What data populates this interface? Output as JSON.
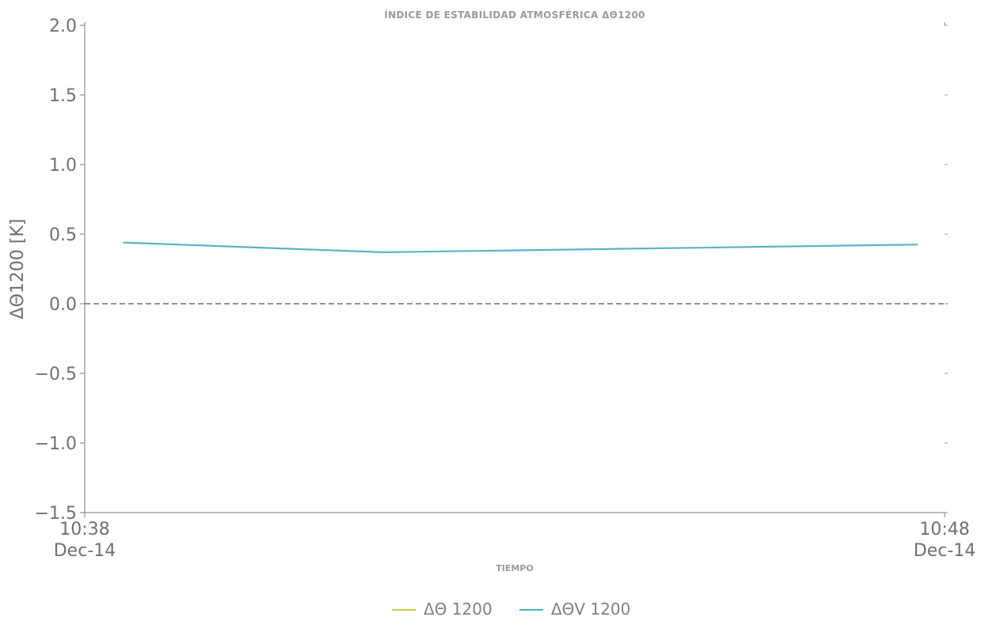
{
  "chart_data": {
    "type": "line",
    "title": "ÍNDICE DE ESTABILIDAD ATMOSFÉRICA ΔΘ1200",
    "xlabel": "TIEMPO",
    "ylabel": "ΔΘ1200 [K]",
    "ylim": [
      -1.5,
      2.0
    ],
    "xlim": [
      "10:38",
      "10:48"
    ],
    "y_ticks": [
      {
        "value": 2.0,
        "label": "2.0"
      },
      {
        "value": 1.5,
        "label": "1.5"
      },
      {
        "value": 1.0,
        "label": "1.0"
      },
      {
        "value": 0.5,
        "label": "0.5"
      },
      {
        "value": 0.0,
        "label": "0.0"
      },
      {
        "value": -0.5,
        "label": "−0.5"
      },
      {
        "value": -1.0,
        "label": "−1.0"
      },
      {
        "value": -1.5,
        "label": "−1.5"
      }
    ],
    "x_ticks": [
      {
        "time": "10:38",
        "line1": "10:38",
        "line2": "Dec-14"
      },
      {
        "time": "10:48",
        "line1": "10:48",
        "line2": "Dec-14"
      }
    ],
    "reference_line": {
      "y": 0.0,
      "style": "dashed",
      "color": "#6e6e6e"
    },
    "grid": false,
    "legend_position": "bottom-center",
    "series": [
      {
        "name": "ΔΘ 1200",
        "color": "#c9cf5a",
        "x": [],
        "y": []
      },
      {
        "name": "ΔΘV 1200",
        "color": "#57b5c6",
        "x": [
          "10:38:27",
          "10:41:28",
          "10:47:41"
        ],
        "y": [
          0.44,
          0.37,
          0.425
        ]
      }
    ]
  }
}
